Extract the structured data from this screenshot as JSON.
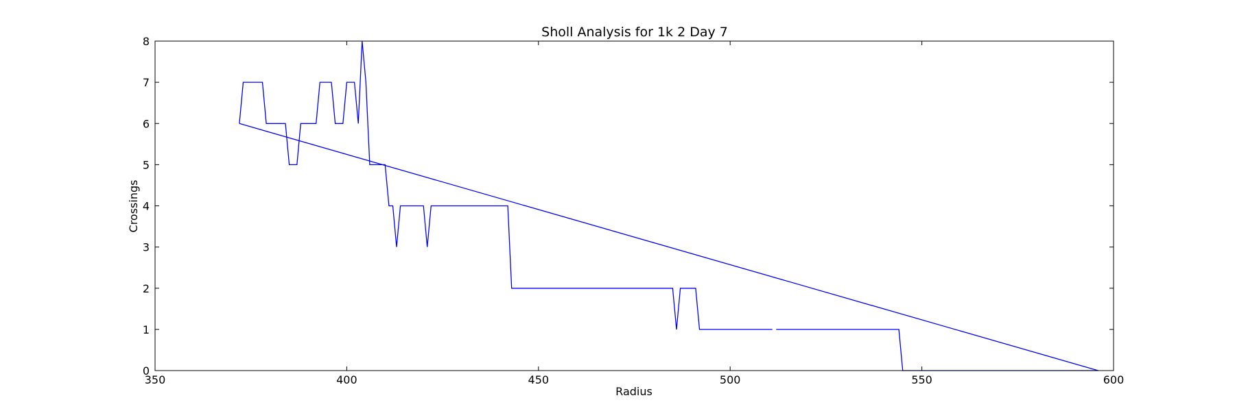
{
  "chart_data": {
    "type": "line",
    "title": "Sholl Analysis for 1k 2 Day 7",
    "xlabel": "Radius",
    "ylabel": "Crossings",
    "xlim": [
      350,
      600
    ],
    "ylim": [
      0,
      8
    ],
    "xticks": [
      "350",
      "400",
      "450",
      "500",
      "550",
      "600"
    ],
    "yticks": [
      "0",
      "1",
      "2",
      "3",
      "4",
      "5",
      "6",
      "7",
      "8"
    ],
    "grid": false,
    "legend": "none",
    "series": [
      {
        "color": "#0000ff",
        "segments": [
          [
            [
              372,
              6
            ],
            [
              373,
              7
            ],
            [
              378,
              7
            ],
            [
              379,
              6
            ],
            [
              384,
              6
            ],
            [
              385,
              5
            ],
            [
              387,
              5
            ],
            [
              388,
              6
            ],
            [
              392,
              6
            ],
            [
              393,
              7
            ],
            [
              396,
              7
            ],
            [
              397,
              6
            ],
            [
              399,
              6
            ],
            [
              400,
              7
            ],
            [
              402,
              7
            ],
            [
              403,
              6
            ],
            [
              404,
              8
            ],
            [
              405,
              7
            ],
            [
              406,
              5
            ],
            [
              410,
              5
            ],
            [
              411,
              4
            ],
            [
              412,
              4
            ],
            [
              413,
              3
            ],
            [
              414,
              4
            ],
            [
              420,
              4
            ],
            [
              421,
              3
            ],
            [
              422,
              4
            ],
            [
              442,
              4
            ],
            [
              443,
              2
            ],
            [
              485,
              2
            ],
            [
              486,
              1
            ],
            [
              487,
              2
            ],
            [
              491,
              2
            ],
            [
              492,
              1
            ],
            [
              511,
              1
            ]
          ],
          [
            [
              512,
              1
            ],
            [
              544,
              1
            ],
            [
              545,
              0
            ],
            [
              596,
              0
            ]
          ],
          [
            [
              372,
              6
            ],
            [
              596,
              0
            ]
          ]
        ]
      }
    ]
  }
}
